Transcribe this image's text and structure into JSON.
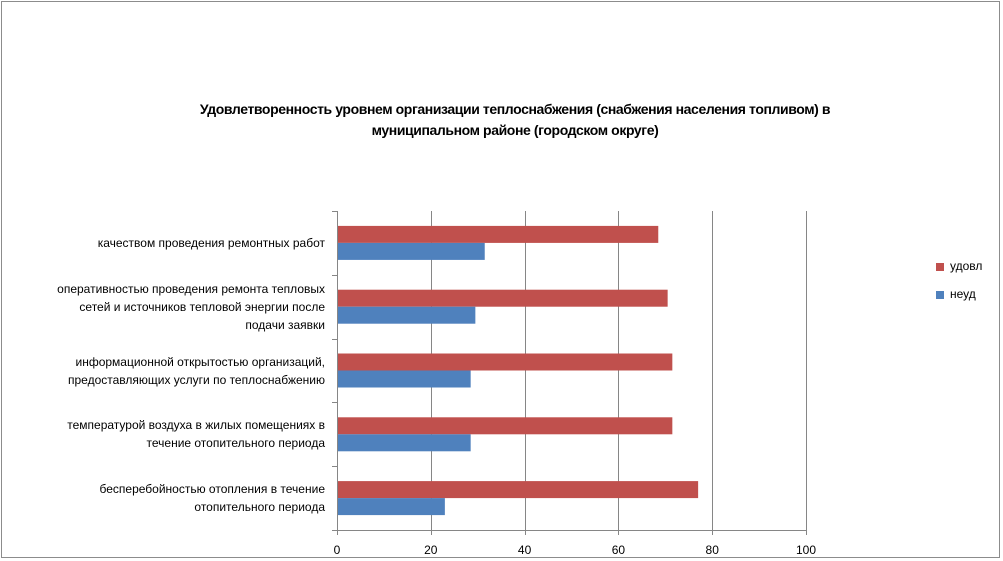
{
  "chart_data": {
    "type": "bar",
    "orientation": "horizontal",
    "title_lines": [
      "Удовлетворенность уровнем организации теплоснабжения (снабжения населения топливом) в",
      "муниципальном районе (городском округе)"
    ],
    "categories": [
      "качеством проведения ремонтных работ",
      "оперативностью проведения ремонта тепловых сетей и источников тепловой энергии после подачи заявки",
      "информационной открытостью организаций, предоставляющих услуги по теплоснабжению",
      "температурой воздуха в жилых помещениях в течение отопительного периода",
      "бесперебойностью отопления в течение отопительного периода"
    ],
    "category_lines": [
      [
        "качеством проведения ремонтных работ"
      ],
      [
        "оперативностью проведения ремонта тепловых",
        "сетей и источников тепловой энергии после",
        "подачи заявки"
      ],
      [
        "информационной открытостью организаций,",
        "предоставляющих услуги по теплоснабжению"
      ],
      [
        "температурой воздуха в жилых помещениях в",
        "течение отопительного периода"
      ],
      [
        "бесперебойностью отопления в течение",
        "отопительного периода"
      ]
    ],
    "series": [
      {
        "name": "удовл",
        "color": "#c0504d",
        "values": [
          68.5,
          70.5,
          71.5,
          71.5,
          77
        ]
      },
      {
        "name": "неуд",
        "color": "#4f81bd",
        "values": [
          31.5,
          29.5,
          28.5,
          28.5,
          23
        ]
      }
    ],
    "xlim": [
      0,
      100
    ],
    "xticks": [
      0,
      20,
      40,
      60,
      80,
      100
    ],
    "grid": true,
    "legend_position": "right"
  }
}
